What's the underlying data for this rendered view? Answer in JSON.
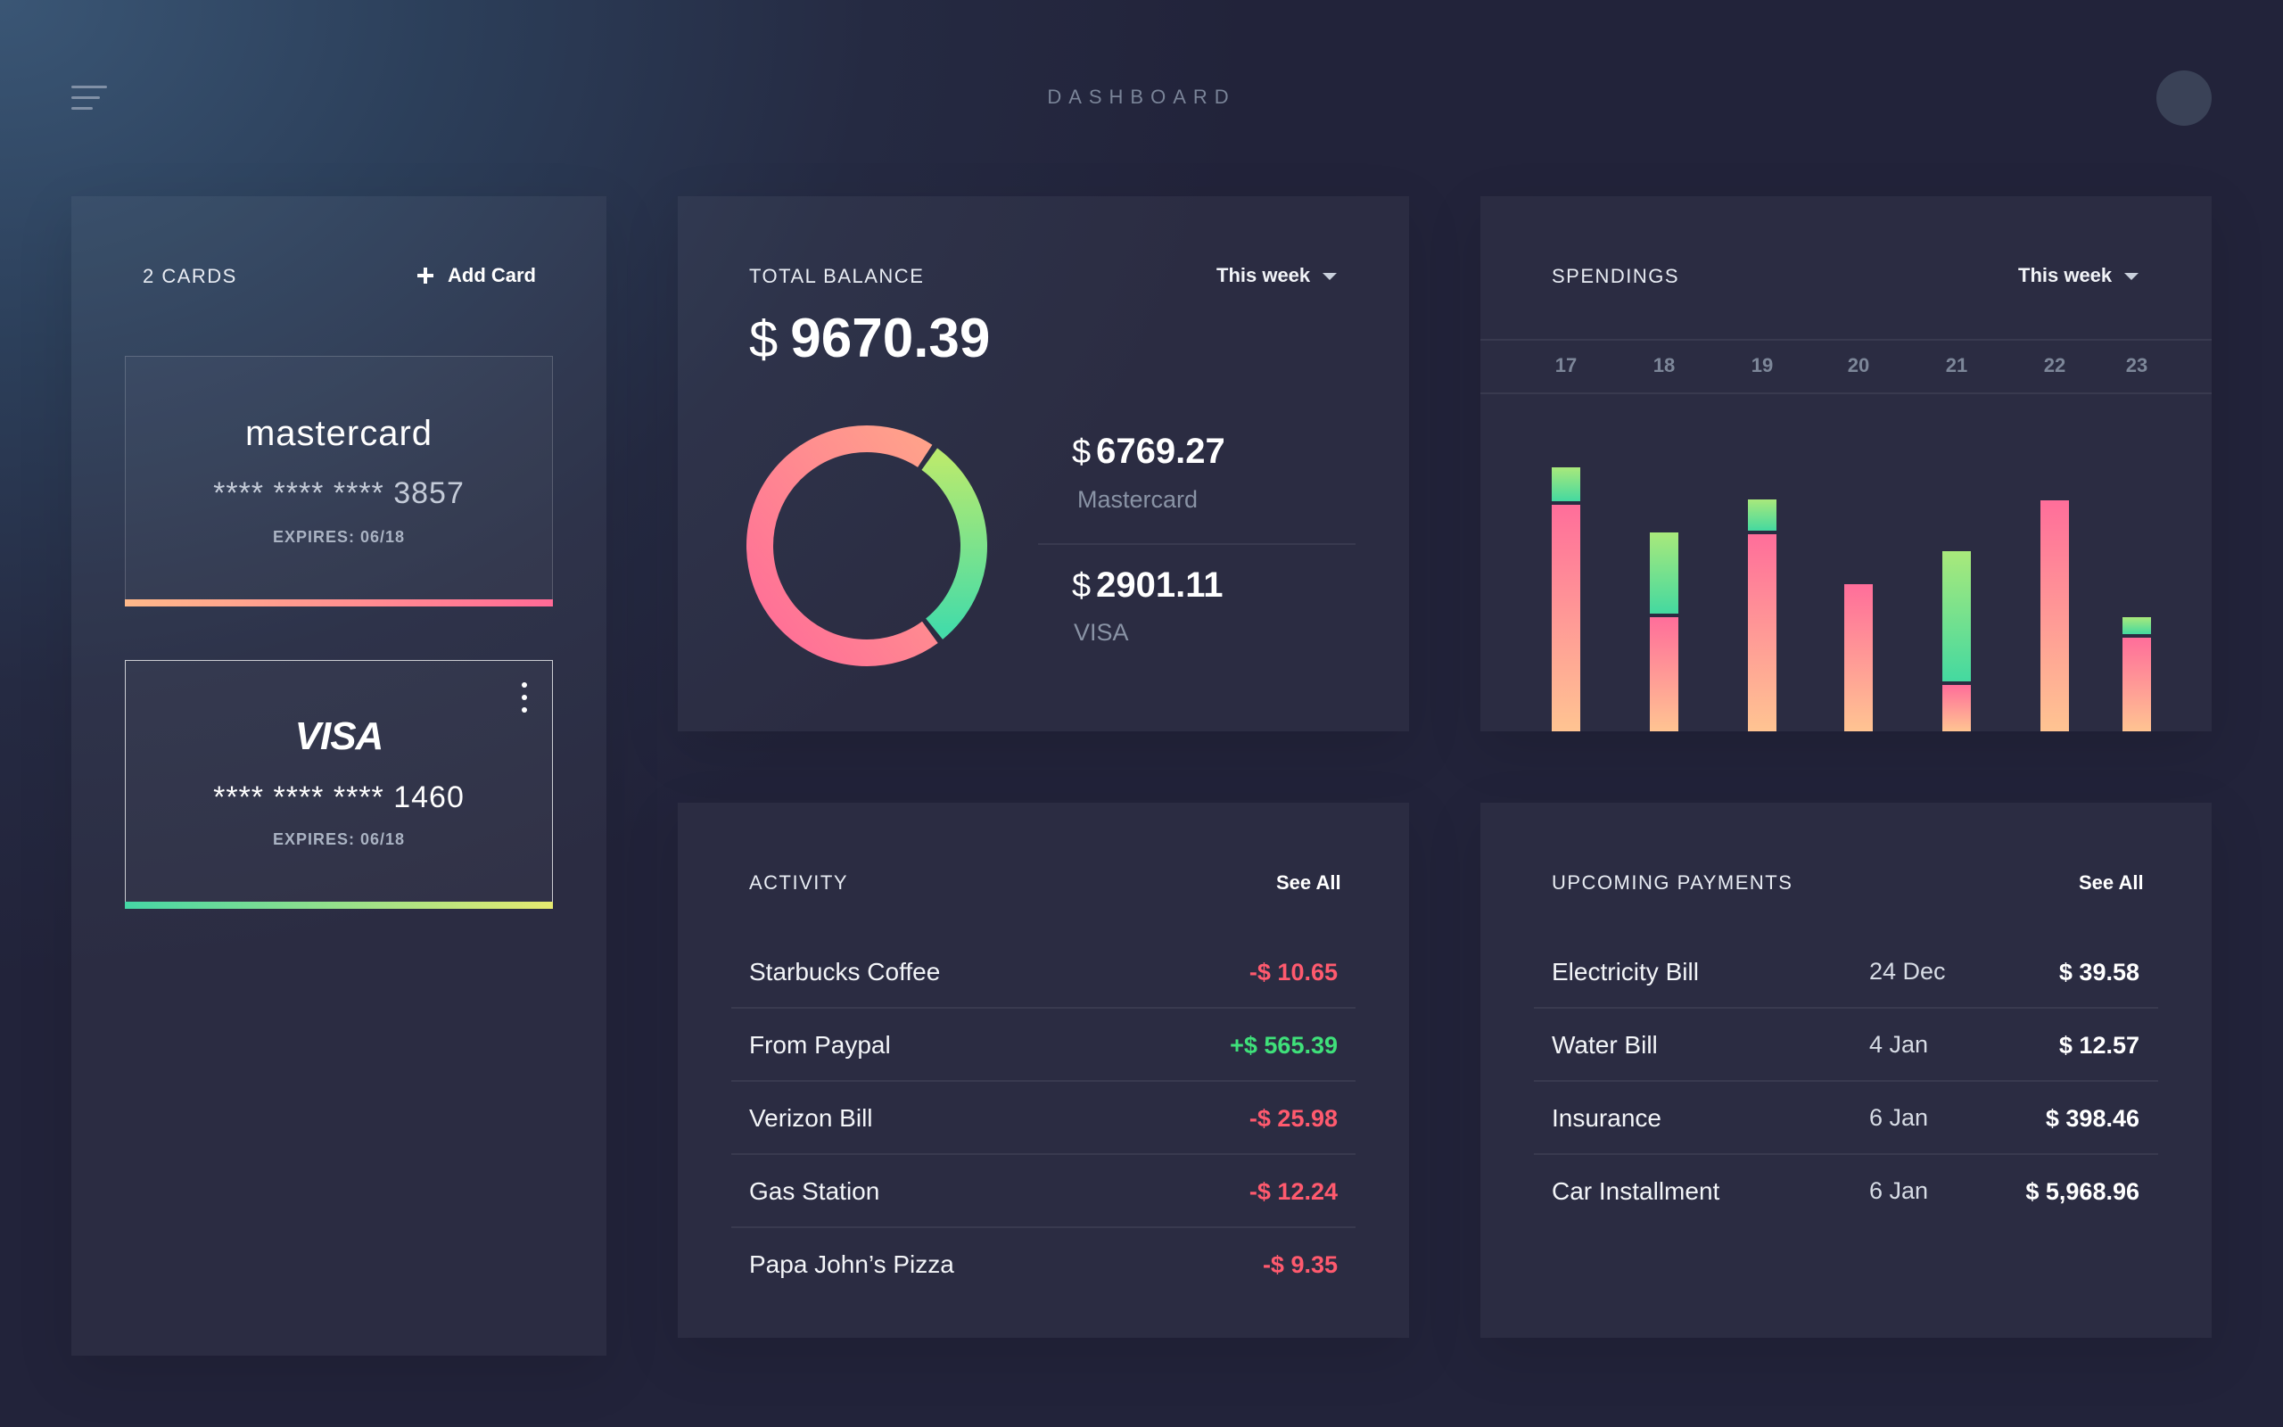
{
  "header": {
    "title": "DASHBOARD"
  },
  "cards_panel": {
    "count_label": "2 CARDS",
    "add_label": "Add Card",
    "cards": [
      {
        "brand": "mastercard",
        "number": "**** **** **** 3857",
        "expires": "EXPIRES: 06/18",
        "gradient": [
          "#ffb98a",
          "#ff6a96"
        ]
      },
      {
        "brand": "VISA",
        "number": "**** **** **** 1460",
        "expires": "EXPIRES: 06/18",
        "gradient": [
          "#45d6a5",
          "#e6ea70"
        ]
      }
    ]
  },
  "balance": {
    "title": "TOTAL BALANCE",
    "period": "This week",
    "currency": "$",
    "total": "9670.39",
    "accounts": [
      {
        "currency": "$",
        "amount": "6769.27",
        "name": "Mastercard"
      },
      {
        "currency": "$",
        "amount": "2901.11",
        "name": "VISA"
      }
    ],
    "donut": {
      "segments": [
        {
          "name": "Mastercard",
          "value": 6769.27,
          "colors": [
            "#ff6b98",
            "#ffa38a"
          ]
        },
        {
          "name": "VISA",
          "value": 2901.11,
          "colors": [
            "#45dca8",
            "#b8ea6e"
          ]
        }
      ]
    }
  },
  "spendings": {
    "title": "SPENDINGS",
    "period": "This week",
    "chart_data": {
      "type": "bar",
      "categories": [
        "17",
        "18",
        "19",
        "20",
        "21",
        "22",
        "23"
      ],
      "series": [
        {
          "values": [
            270,
            136,
            235,
            175,
            55,
            275,
            112
          ]
        },
        {
          "values": [
            40,
            97,
            37,
            0,
            155,
            0,
            20
          ]
        }
      ],
      "ylim": [
        0,
        340
      ]
    }
  },
  "activity": {
    "title": "ACTIVITY",
    "see_all": "See All",
    "items": [
      {
        "name": "Starbucks Coffee",
        "amount": "-$ 10.65",
        "type": "debit"
      },
      {
        "name": "From Paypal",
        "amount": "+$ 565.39",
        "type": "credit"
      },
      {
        "name": "Verizon Bill",
        "amount": "-$ 25.98",
        "type": "debit"
      },
      {
        "name": "Gas Station",
        "amount": "-$ 12.24",
        "type": "debit"
      },
      {
        "name": "Papa John’s Pizza",
        "amount": "-$ 9.35",
        "type": "debit"
      }
    ]
  },
  "upcoming": {
    "title": "UPCOMING PAYMENTS",
    "see_all": "See All",
    "items": [
      {
        "name": "Electricity Bill",
        "date": "24 Dec",
        "amount": "$ 39.58"
      },
      {
        "name": "Water Bill",
        "date": "4 Jan",
        "amount": "$ 12.57"
      },
      {
        "name": "Insurance",
        "date": "6 Jan",
        "amount": "$ 398.46"
      },
      {
        "name": "Car Installment",
        "date": "6 Jan",
        "amount": "$ 5,968.96"
      }
    ]
  },
  "colors": {
    "debit": "#ff5a6e",
    "credit": "#3fe07a",
    "bar_pink": [
      "#ff6e9a",
      "#ffc492"
    ],
    "bar_green": [
      "#44d9a0",
      "#a9e97b"
    ]
  }
}
